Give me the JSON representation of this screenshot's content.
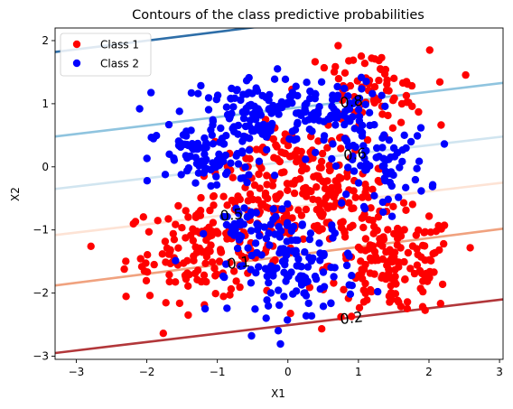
{
  "chart_data": {
    "type": "scatter",
    "title": "Contours of the class predictive probabilities",
    "xlabel": "X1",
    "ylabel": "X2",
    "xlim": [
      -3.3,
      3.05
    ],
    "ylim": [
      -3.05,
      2.2
    ],
    "xticks": [
      -3,
      -2,
      -1,
      0,
      1,
      2,
      3
    ],
    "yticks": [
      -3,
      -2,
      -1,
      0,
      1,
      2
    ],
    "legend": {
      "position": "top-left",
      "entries": [
        "Class 1",
        "Class 2"
      ]
    },
    "series": [
      {
        "name": "Class 1",
        "color": "#ff0000",
        "clusters": [
          {
            "cx": 0.0,
            "cy": 0.05,
            "sx": 0.5,
            "sy": 0.28,
            "n": 90
          },
          {
            "cx": 0.55,
            "cy": -0.55,
            "sx": 0.5,
            "sy": 0.35,
            "n": 110
          },
          {
            "cx": -1.2,
            "cy": -1.35,
            "sx": 0.55,
            "sy": 0.38,
            "n": 150
          },
          {
            "cx": 1.5,
            "cy": -1.55,
            "sx": 0.45,
            "sy": 0.4,
            "n": 160
          },
          {
            "cx": 1.1,
            "cy": 1.2,
            "sx": 0.45,
            "sy": 0.32,
            "n": 80
          },
          {
            "cx": -0.3,
            "cy": -0.7,
            "sx": 0.45,
            "sy": 0.2,
            "n": 40
          }
        ]
      },
      {
        "name": "Class 2",
        "color": "#0000ff",
        "clusters": [
          {
            "cx": -0.5,
            "cy": 0.85,
            "sx": 0.55,
            "sy": 0.3,
            "n": 130
          },
          {
            "cx": 0.55,
            "cy": 0.85,
            "sx": 0.35,
            "sy": 0.28,
            "n": 80
          },
          {
            "cx": -1.1,
            "cy": 0.1,
            "sx": 0.4,
            "sy": 0.25,
            "n": 80
          },
          {
            "cx": 1.3,
            "cy": 0.0,
            "sx": 0.35,
            "sy": 0.3,
            "n": 70
          },
          {
            "cx": 0.1,
            "cy": -1.55,
            "sx": 0.45,
            "sy": 0.4,
            "n": 140
          },
          {
            "cx": -0.6,
            "cy": -1.0,
            "sx": 0.25,
            "sy": 0.25,
            "n": 30
          }
        ]
      }
    ],
    "contours": [
      {
        "label": "0.2",
        "color": "#b2373a",
        "x": [
          -3.3,
          3.05
        ],
        "y": [
          -2.95,
          -2.1
        ],
        "label_x": 0.9
      },
      {
        "label": "0.1",
        "color": "#f0a27f",
        "x": [
          -3.3,
          3.05
        ],
        "y": [
          -1.88,
          -0.98
        ],
        "label_x": -0.7
      },
      {
        "label": "0.5",
        "color": "#fde3d5",
        "x": [
          -3.3,
          3.05
        ],
        "y": [
          -1.08,
          -0.25
        ],
        "label_x": -0.8
      },
      {
        "label": "0.6",
        "color": "#d1e5f0",
        "x": [
          -3.3,
          3.05
        ],
        "y": [
          -0.35,
          0.48
        ],
        "label_x": 0.95
      },
      {
        "label": "0.8",
        "color": "#8fc4df",
        "x": [
          -3.3,
          3.05
        ],
        "y": [
          0.48,
          1.33
        ],
        "label_x": 0.9
      },
      {
        "label": "",
        "color": "#2e6ea8",
        "x": [
          -3.3,
          3.05
        ],
        "y": [
          1.82,
          2.7
        ],
        "label_x": null
      }
    ]
  }
}
